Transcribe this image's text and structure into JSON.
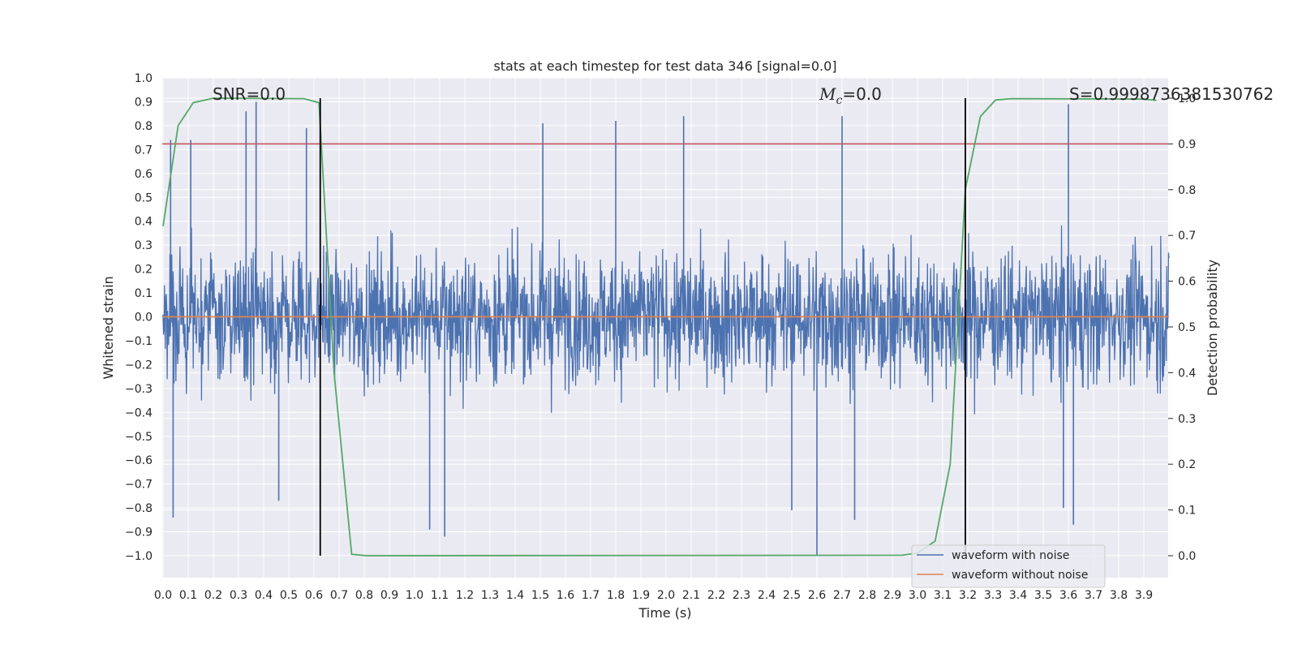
{
  "chart_data": {
    "type": "line",
    "title": "stats at each timestep for test data 346 [signal=0.0]",
    "xlabel": "Time (s)",
    "ylabel": "Whitened strain",
    "ylabel_right": "Detection probability",
    "xlim": [
      0.0,
      4.0
    ],
    "ylim": [
      -1.09,
      1.0
    ],
    "ylim_right": [
      -0.05,
      1.0
    ],
    "x_ticks": [
      "0.0",
      "0.1",
      "0.2",
      "0.3",
      "0.4",
      "0.5",
      "0.6",
      "0.7",
      "0.8",
      "0.9",
      "1.0",
      "1.1",
      "1.2",
      "1.3",
      "1.4",
      "1.5",
      "1.6",
      "1.7",
      "1.8",
      "1.9",
      "2.0",
      "2.1",
      "2.2",
      "2.3",
      "2.4",
      "2.5",
      "2.6",
      "2.7",
      "2.8",
      "2.9",
      "3.0",
      "3.1",
      "3.2",
      "3.3",
      "3.4",
      "3.5",
      "3.6",
      "3.7",
      "3.8",
      "3.9"
    ],
    "y_ticks": [
      "1.0",
      "0.9",
      "0.8",
      "0.7",
      "0.6",
      "0.5",
      "0.4",
      "0.3",
      "0.2",
      "0.1",
      "0.0",
      "−0.1",
      "−0.2",
      "−0.3",
      "−0.4",
      "−0.5",
      "−0.6",
      "−0.7",
      "−0.8",
      "−0.9",
      "−1.0"
    ],
    "y_right_ticks": [
      "1.0",
      "0.9",
      "0.8",
      "0.7",
      "0.6",
      "0.5",
      "0.4",
      "0.3",
      "0.2",
      "0.1",
      "0.0"
    ],
    "annotations": {
      "snr": "SNR=0.0",
      "mc_symbol": "M",
      "mc_sub": "c",
      "mc_value": "=0.0",
      "s": "S=0.9998736381530762"
    },
    "grid": true,
    "legend_position": "bottom-right",
    "series": [
      {
        "name": "waveform with noise",
        "color": "#4c72b0",
        "axis": "left",
        "noise_amplitude": 0.42,
        "spikes": [
          {
            "x": 0.03,
            "y": 0.74
          },
          {
            "x": 0.11,
            "y": 0.74
          },
          {
            "x": 0.33,
            "y": 0.86
          },
          {
            "x": 0.37,
            "y": 0.9
          },
          {
            "x": 0.57,
            "y": 0.79
          },
          {
            "x": 1.51,
            "y": 0.81
          },
          {
            "x": 1.8,
            "y": 0.82
          },
          {
            "x": 2.07,
            "y": 0.84
          },
          {
            "x": 2.7,
            "y": 0.84
          },
          {
            "x": 3.6,
            "y": 0.89
          },
          {
            "x": 0.04,
            "y": -0.84
          },
          {
            "x": 0.46,
            "y": -0.77
          },
          {
            "x": 1.06,
            "y": -0.89
          },
          {
            "x": 1.12,
            "y": -0.92
          },
          {
            "x": 2.6,
            "y": -1.0
          },
          {
            "x": 2.5,
            "y": -0.81
          },
          {
            "x": 2.75,
            "y": -0.85
          },
          {
            "x": 3.62,
            "y": -0.87
          },
          {
            "x": 3.58,
            "y": -0.8
          }
        ]
      },
      {
        "name": "waveform without noise",
        "color": "#dd8452",
        "axis": "left",
        "values": [
          {
            "x": 0.0,
            "y": 0.0
          },
          {
            "x": 4.0,
            "y": 0.0
          }
        ]
      },
      {
        "name": "",
        "color": "#55a868",
        "axis": "right",
        "values": [
          {
            "x": 0.0,
            "y": 0.72
          },
          {
            "x": 0.06,
            "y": 0.94
          },
          {
            "x": 0.12,
            "y": 0.99
          },
          {
            "x": 0.2,
            "y": 1.0
          },
          {
            "x": 0.56,
            "y": 0.999
          },
          {
            "x": 0.62,
            "y": 0.99
          },
          {
            "x": 0.68,
            "y": 0.4
          },
          {
            "x": 0.75,
            "y": 0.003
          },
          {
            "x": 0.81,
            "y": 0.0
          },
          {
            "x": 2.94,
            "y": 0.001
          },
          {
            "x": 3.0,
            "y": 0.006
          },
          {
            "x": 3.07,
            "y": 0.032
          },
          {
            "x": 3.13,
            "y": 0.2
          },
          {
            "x": 3.19,
            "y": 0.8
          },
          {
            "x": 3.25,
            "y": 0.96
          },
          {
            "x": 3.31,
            "y": 0.996
          },
          {
            "x": 3.37,
            "y": 0.999
          },
          {
            "x": 3.9,
            "y": 0.998
          },
          {
            "x": 3.95,
            "y": 0.995
          }
        ]
      }
    ],
    "horizontal_lines": [
      {
        "axis": "right",
        "y": 0.9,
        "color": "#c44e52"
      }
    ],
    "vertical_lines": [
      {
        "x": 0.625,
        "color": "#000000"
      },
      {
        "x": 3.19,
        "color": "#000000"
      }
    ]
  }
}
